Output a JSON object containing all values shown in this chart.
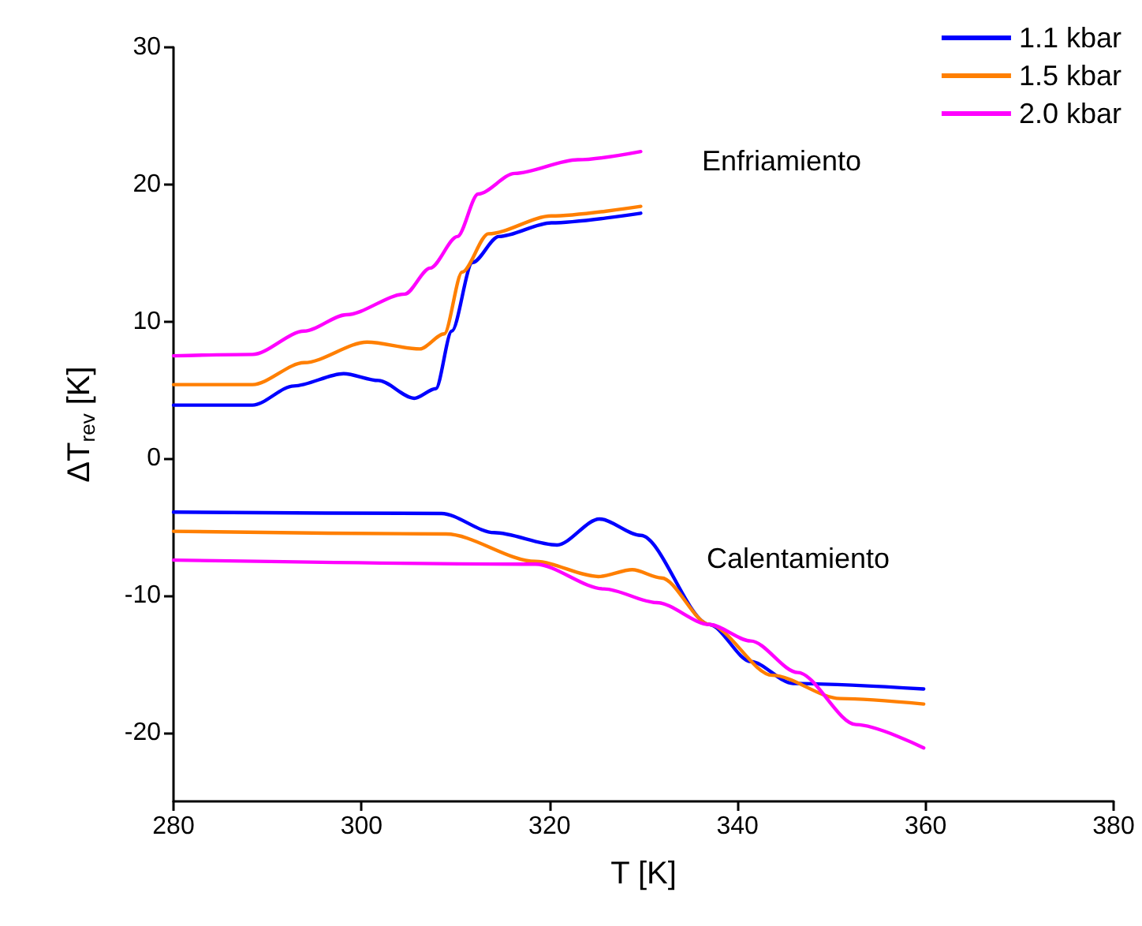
{
  "chart_data": {
    "type": "line",
    "xlabel": "T [K]",
    "ylabel": "ΔT$_{rev}$ [K]",
    "xlim": [
      280,
      380
    ],
    "xticks": [
      280,
      300,
      320,
      340,
      360,
      380
    ],
    "ylim": [
      -25,
      30
    ],
    "yticks": [
      -20,
      -10,
      0,
      10,
      20,
      30
    ],
    "grid": false,
    "legend": "top right",
    "marker": "none",
    "line_style": "solid",
    "annotations": [
      "Enfriamiento",
      "Calentamiento"
    ],
    "series": [
      {
        "name": "1.1 kbar",
        "color": "#0000ff",
        "x": [
          280,
          288.4,
          292.8,
          298.1,
          301.8,
          305.6,
          307.9,
          309.6,
          311.8,
          314.6,
          320.2,
          329.7
        ],
        "values": [
          3.9,
          3.9,
          5.3,
          6.2,
          5.7,
          4.4,
          5.1,
          9.3,
          14.3,
          16.2,
          17.2,
          17.9
        ]
      },
      {
        "name": "1.5 kbar",
        "color": "#ff7f00",
        "x": [
          280,
          288.4,
          293.9,
          300.6,
          306.2,
          308.8,
          310.7,
          313.5,
          320.2,
          329.7
        ],
        "values": [
          5.4,
          5.4,
          7.0,
          8.5,
          8.0,
          9.1,
          13.6,
          16.4,
          17.7,
          18.4
        ]
      },
      {
        "name": "2.0 kbar",
        "color": "#ff00ff",
        "x": [
          280,
          288.4,
          293.9,
          298.4,
          304.6,
          307.3,
          310.2,
          312.4,
          316.3,
          323.0,
          329.7
        ],
        "values": [
          7.5,
          7.6,
          9.3,
          10.5,
          12.0,
          13.9,
          16.2,
          19.3,
          20.8,
          21.8,
          22.4
        ]
      },
      {
        "color": "#0000ff",
        "x": [
          280,
          308.5,
          314.1,
          320.8,
          325.3,
          329.7,
          337.0,
          341.4,
          345.9,
          359.8
        ],
        "values": [
          -3.9,
          -4.0,
          -5.4,
          -6.3,
          -4.4,
          -5.6,
          -12.1,
          -14.8,
          -16.4,
          -16.8
        ]
      },
      {
        "color": "#ff7f00",
        "x": [
          280,
          309.0,
          318.5,
          325.2,
          328.8,
          331.9,
          337.0,
          343.7,
          350.9,
          359.8
        ],
        "values": [
          -5.3,
          -5.5,
          -7.5,
          -8.6,
          -8.1,
          -8.7,
          -12.1,
          -15.8,
          -17.5,
          -17.9
        ]
      },
      {
        "color": "#ff00ff",
        "x": [
          280,
          318.5,
          325.8,
          331.4,
          337.0,
          341.4,
          346.4,
          352.6,
          359.8
        ],
        "values": [
          -7.4,
          -7.7,
          -9.5,
          -10.5,
          -12.1,
          -13.3,
          -15.6,
          -19.4,
          -21.1
        ]
      }
    ]
  }
}
